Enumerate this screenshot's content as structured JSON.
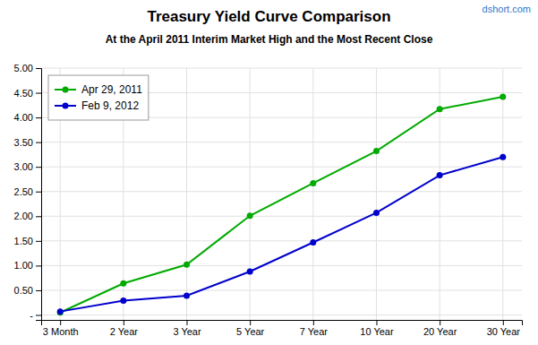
{
  "chart_data": {
    "type": "line",
    "title": "Treasury Yield Curve Comparison",
    "subtitle": "At the April 2011 Interim Market High and the Most Recent Close",
    "annotations": [
      "dshort.com"
    ],
    "categories": [
      "3 Month",
      "2 Year",
      "3 Year",
      "5 Year",
      "7 Year",
      "10 Year",
      "20 Year",
      "30 Year"
    ],
    "series": [
      {
        "name": "Apr 29, 2011",
        "color": "#00aa00",
        "marker": "circle",
        "values": [
          0.05,
          0.64,
          1.02,
          2.01,
          2.67,
          3.32,
          4.17,
          4.42
        ]
      },
      {
        "name": "Feb 9, 2012",
        "color": "#0000cc",
        "marker": "circle",
        "values": [
          0.07,
          0.29,
          0.39,
          0.88,
          1.47,
          2.07,
          2.83,
          3.2
        ]
      }
    ],
    "ylim": [
      -0.1,
      5.0
    ],
    "yticks": [
      {
        "value": 0.0,
        "label": "-"
      },
      {
        "value": 0.5,
        "label": "0.50"
      },
      {
        "value": 1.0,
        "label": "1.00"
      },
      {
        "value": 1.5,
        "label": "1.50"
      },
      {
        "value": 2.0,
        "label": "2.00"
      },
      {
        "value": 2.5,
        "label": "2.50"
      },
      {
        "value": 3.0,
        "label": "3.00"
      },
      {
        "value": 3.5,
        "label": "3.50"
      },
      {
        "value": 4.0,
        "label": "4.00"
      },
      {
        "value": 4.5,
        "label": "4.50"
      },
      {
        "value": 5.0,
        "label": "5.00"
      }
    ],
    "grid": true,
    "legend": "upper-left"
  }
}
